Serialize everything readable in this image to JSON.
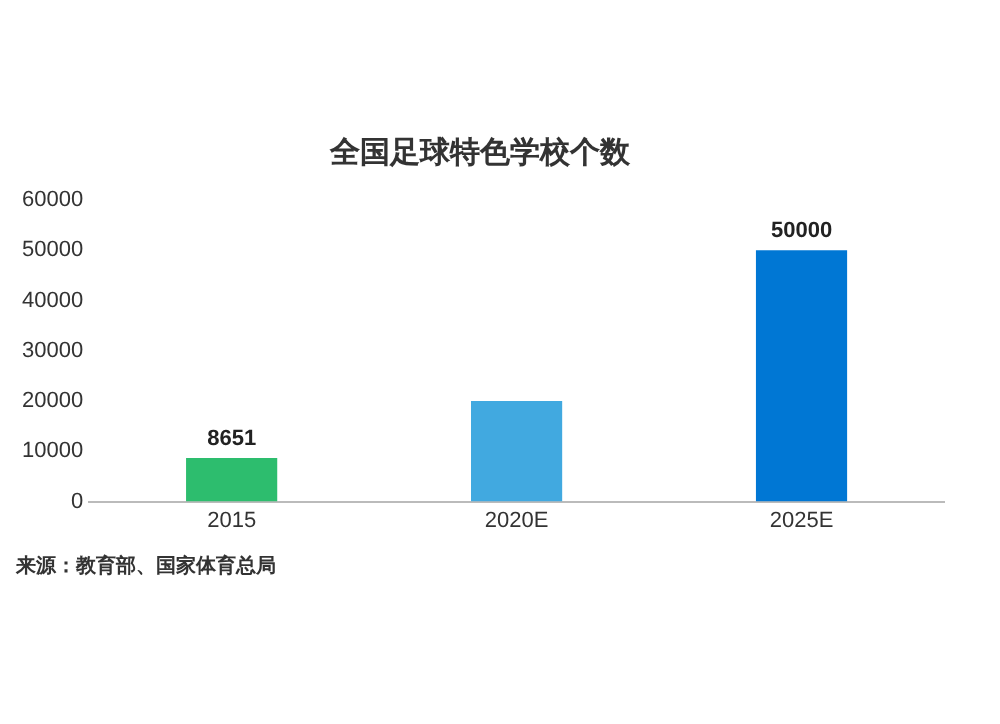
{
  "chart_data": {
    "type": "bar",
    "title": "全国足球特色学校个数",
    "categories": [
      "2015",
      "2020E",
      "2025E"
    ],
    "values": [
      8651,
      20000,
      50000
    ],
    "colors": [
      "#2dbd6e",
      "#41a9e0",
      "#0077d4"
    ],
    "value_labels": [
      "8651",
      null,
      "50000"
    ],
    "ylim": [
      0,
      60000
    ],
    "yticks": [
      0,
      10000,
      20000,
      30000,
      40000,
      50000,
      60000
    ],
    "grid": false,
    "legend": false,
    "annotations": [
      "来源：教育部、国家体育总局"
    ]
  }
}
